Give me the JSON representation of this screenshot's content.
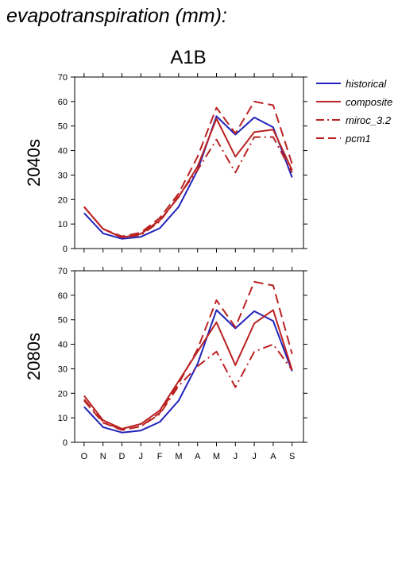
{
  "page": {
    "title": "evapotranspiration (mm):"
  },
  "chart_data": {
    "type": "line",
    "title": "A1B",
    "x": [
      "O",
      "N",
      "D",
      "J",
      "F",
      "M",
      "A",
      "M",
      "J",
      "J",
      "A",
      "S"
    ],
    "ylim": [
      0,
      70
    ],
    "yticks": [
      0,
      10,
      20,
      30,
      40,
      50,
      60,
      70
    ],
    "legend": {
      "placement": "top-right",
      "entries": [
        "historical",
        "composite",
        "miroc_3.2",
        "pcm1"
      ]
    },
    "series_styles": {
      "historical": {
        "color": "#2222bb",
        "dash": "solid"
      },
      "composite": {
        "color": "#bb2222",
        "dash": "solid"
      },
      "miroc_3.2": {
        "color": "#bb2222",
        "dash": "dashdot"
      },
      "pcm1": {
        "color": "#bb2222",
        "dash": "dash"
      }
    },
    "panels": [
      {
        "ylabel": "2040s",
        "series": [
          {
            "name": "historical",
            "values": [
              14.5,
              6.2,
              4.0,
              4.8,
              8.3,
              17.0,
              32.0,
              54.0,
              46.5,
              53.5,
              49.5,
              29.0
            ]
          },
          {
            "name": "composite",
            "values": [
              17.0,
              8.0,
              4.5,
              6.0,
              11.5,
              21.0,
              33.5,
              53.0,
              37.5,
              47.5,
              48.5,
              32.0
            ]
          },
          {
            "name": "miroc_3.2",
            "values": [
              17.0,
              8.0,
              4.5,
              5.5,
              11.0,
              21.5,
              32.0,
              44.5,
              31.0,
              45.5,
              45.5,
              31.0
            ]
          },
          {
            "name": "pcm1",
            "values": [
              17.0,
              8.0,
              5.0,
              6.5,
              12.5,
              22.5,
              37.5,
              57.5,
              47.0,
              60.0,
              58.5,
              34.5
            ]
          }
        ]
      },
      {
        "ylabel": "2080s",
        "series": [
          {
            "name": "historical",
            "values": [
              14.5,
              6.2,
              4.0,
              4.8,
              8.3,
              17.0,
              32.0,
              54.0,
              46.5,
              53.5,
              49.5,
              29.0
            ]
          },
          {
            "name": "composite",
            "values": [
              19.0,
              9.0,
              5.5,
              7.5,
              13.0,
              25.0,
              37.0,
              49.0,
              31.5,
              48.5,
              54.0,
              29.5
            ]
          },
          {
            "name": "miroc_3.2",
            "values": [
              17.5,
              8.5,
              5.0,
              6.5,
              11.5,
              23.0,
              31.0,
              37.0,
              22.5,
              37.0,
              40.0,
              29.5
            ]
          },
          {
            "name": "pcm1",
            "values": [
              17.0,
              8.0,
              5.0,
              6.5,
              12.0,
              24.0,
              38.0,
              58.0,
              47.0,
              65.5,
              64.0,
              36.0
            ]
          }
        ]
      }
    ]
  }
}
